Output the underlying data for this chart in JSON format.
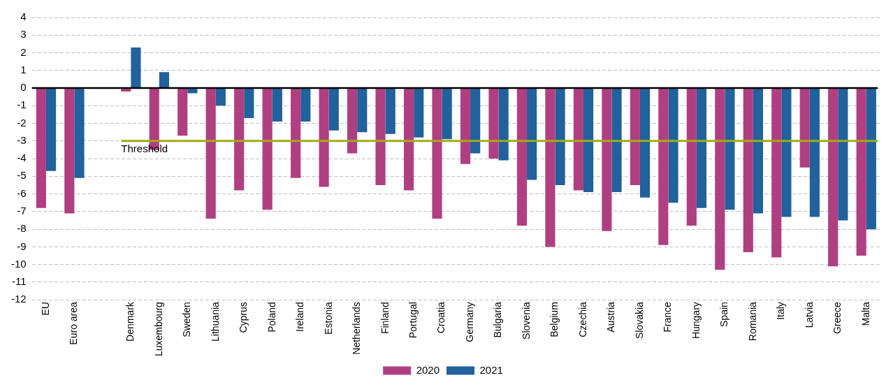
{
  "chart_data": {
    "type": "bar",
    "categories": [
      "EU",
      "Euro area",
      null,
      "Denmark",
      "Luxembourg",
      "Sweden",
      "Lithuania",
      "Cyprus",
      "Poland",
      "Ireland",
      "Estonia",
      "Netherlands",
      "Finland",
      "Portugal",
      "Croatia",
      "Germany",
      "Bulgaria",
      "Slovenia",
      "Belgium",
      "Czechia",
      "Austria",
      "Slovakia",
      "France",
      "Hungary",
      "Spain",
      "Romania",
      "Italy",
      "Latvia",
      "Greece",
      "Malta"
    ],
    "series": [
      {
        "name": "2020",
        "color": "#b03f82",
        "values": [
          -6.8,
          -7.1,
          null,
          -0.2,
          -3.5,
          -2.7,
          -7.4,
          -5.8,
          -6.9,
          -5.1,
          -5.6,
          -3.7,
          -5.5,
          -5.8,
          -7.4,
          -4.3,
          -4.0,
          -7.8,
          -9.0,
          -5.8,
          -8.1,
          -5.5,
          -8.9,
          -7.8,
          -10.3,
          -9.3,
          -9.6,
          -4.5,
          -10.1,
          -9.5
        ]
      },
      {
        "name": "2021",
        "color": "#21619c",
        "values": [
          -4.7,
          -5.1,
          null,
          2.3,
          0.9,
          -0.3,
          -1.0,
          -1.7,
          -1.9,
          -1.9,
          -2.4,
          -2.5,
          -2.6,
          -2.8,
          -2.9,
          -3.7,
          -4.1,
          -5.2,
          -5.5,
          -5.9,
          -5.9,
          -6.2,
          -6.5,
          -6.8,
          -6.9,
          -7.1,
          -7.3,
          -7.3,
          -7.5,
          -8.0
        ]
      }
    ],
    "ylim": [
      -12,
      4
    ],
    "yticks": [
      -12,
      -11,
      -10,
      -9,
      -8,
      -7,
      -6,
      -5,
      -4,
      -3,
      -2,
      -1,
      0,
      1,
      2,
      3,
      4
    ],
    "grid": "y",
    "legend": "bottom",
    "ref_lines": [
      {
        "axis": "y",
        "value": 0,
        "color": "#000000"
      },
      {
        "axis": "y",
        "value": -3,
        "label": "Threshold",
        "color": "#a0ac14"
      }
    ]
  }
}
